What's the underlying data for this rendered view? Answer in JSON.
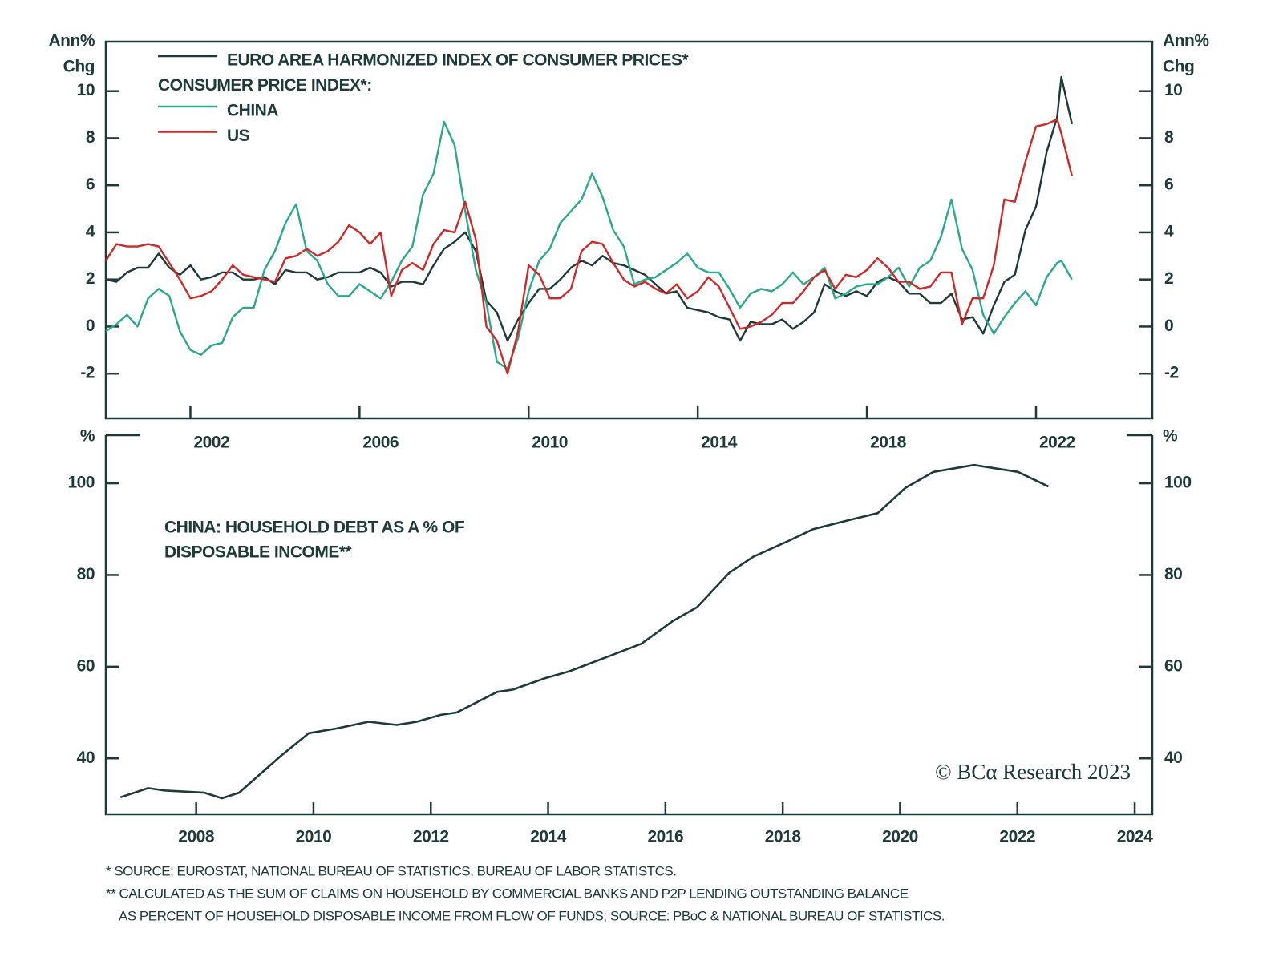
{
  "chart_data": [
    {
      "type": "line",
      "ylabel": [
        "Ann%",
        "Chg"
      ],
      "legend_subtitle": "CONSUMER PRICE INDEX*:",
      "xlim": [
        2000,
        2024.75
      ],
      "xticks": [
        2002,
        2006,
        2010,
        2014,
        2018,
        2022
      ],
      "ylim": [
        -3.9,
        12.1
      ],
      "yticks": [
        -2,
        0,
        2,
        4,
        6,
        8,
        10
      ],
      "x": [
        2000,
        2000.25,
        2000.5,
        2000.75,
        2001,
        2001.25,
        2001.5,
        2001.75,
        2002,
        2002.25,
        2002.5,
        2002.75,
        2003,
        2003.25,
        2003.5,
        2003.75,
        2004,
        2004.25,
        2004.5,
        2004.75,
        2005,
        2005.25,
        2005.5,
        2005.75,
        2006,
        2006.25,
        2006.5,
        2006.75,
        2007,
        2007.25,
        2007.5,
        2007.75,
        2008,
        2008.25,
        2008.5,
        2008.75,
        2009,
        2009.25,
        2009.5,
        2009.75,
        2010,
        2010.25,
        2010.5,
        2010.75,
        2011,
        2011.25,
        2011.5,
        2011.75,
        2012,
        2012.25,
        2012.5,
        2012.75,
        2013,
        2013.25,
        2013.5,
        2013.75,
        2014,
        2014.25,
        2014.5,
        2014.75,
        2015,
        2015.25,
        2015.5,
        2015.75,
        2016,
        2016.25,
        2016.5,
        2016.75,
        2017,
        2017.25,
        2017.5,
        2017.75,
        2018,
        2018.25,
        2018.5,
        2018.75,
        2019,
        2019.25,
        2019.5,
        2019.75,
        2020,
        2020.25,
        2020.5,
        2020.75,
        2021,
        2021.25,
        2021.5,
        2021.75,
        2022,
        2022.25,
        2022.5,
        2022.6,
        2022.85
      ],
      "series": [
        {
          "name": "EURO AREA HARMONIZED INDEX OF CONSUMER PRICES*",
          "color": "#1d3a38",
          "values": [
            2.0,
            1.9,
            2.3,
            2.5,
            2.5,
            3.1,
            2.5,
            2.2,
            2.6,
            2.0,
            2.1,
            2.3,
            2.3,
            2.0,
            2.0,
            2.1,
            1.8,
            2.4,
            2.3,
            2.3,
            2.0,
            2.1,
            2.3,
            2.3,
            2.3,
            2.5,
            2.3,
            1.7,
            1.9,
            1.9,
            1.8,
            2.6,
            3.3,
            3.6,
            4.0,
            3.2,
            1.1,
            0.6,
            -0.6,
            0.3,
            1.0,
            1.6,
            1.6,
            2.0,
            2.5,
            2.8,
            2.6,
            3.0,
            2.7,
            2.6,
            2.4,
            2.2,
            1.8,
            1.4,
            1.5,
            0.8,
            0.7,
            0.6,
            0.4,
            0.3,
            -0.6,
            0.2,
            0.1,
            0.1,
            0.3,
            -0.1,
            0.2,
            0.6,
            1.8,
            1.5,
            1.3,
            1.5,
            1.3,
            1.9,
            2.1,
            1.9,
            1.4,
            1.4,
            1.0,
            1.0,
            1.4,
            0.3,
            0.4,
            -0.3,
            0.9,
            1.9,
            2.2,
            4.1,
            5.1,
            7.4,
            8.9,
            10.6,
            8.6
          ]
        },
        {
          "name": "CHINA",
          "color": "#2aa98a",
          "values": [
            -0.2,
            0.1,
            0.5,
            0.0,
            1.2,
            1.6,
            1.3,
            -0.2,
            -1.0,
            -1.2,
            -0.8,
            -0.7,
            0.4,
            0.8,
            0.8,
            2.4,
            3.2,
            4.4,
            5.2,
            3.2,
            2.8,
            1.8,
            1.3,
            1.3,
            1.8,
            1.5,
            1.2,
            1.9,
            2.8,
            3.4,
            5.6,
            6.5,
            8.7,
            7.7,
            4.9,
            2.4,
            1.0,
            -1.5,
            -1.8,
            -0.5,
            1.5,
            2.8,
            3.3,
            4.4,
            4.9,
            5.4,
            6.5,
            5.5,
            4.1,
            3.4,
            1.8,
            2.0,
            2.1,
            2.4,
            2.7,
            3.1,
            2.5,
            2.3,
            2.3,
            1.6,
            0.8,
            1.4,
            1.6,
            1.5,
            1.8,
            2.3,
            1.8,
            2.1,
            2.5,
            1.2,
            1.4,
            1.7,
            1.8,
            1.8,
            2.1,
            2.5,
            1.7,
            2.5,
            2.8,
            3.8,
            5.4,
            3.3,
            2.4,
            0.5,
            -0.3,
            0.4,
            1.0,
            1.5,
            0.9,
            2.1,
            2.7,
            2.8,
            2.0
          ]
        },
        {
          "name": "US",
          "color": "#cc2a2a",
          "values": [
            2.8,
            3.5,
            3.4,
            3.4,
            3.5,
            3.4,
            2.7,
            2.0,
            1.2,
            1.3,
            1.5,
            2.0,
            2.6,
            2.2,
            2.1,
            2.0,
            1.9,
            2.9,
            3.0,
            3.3,
            3.0,
            3.2,
            3.6,
            4.3,
            4.0,
            3.5,
            4.0,
            1.3,
            2.4,
            2.7,
            2.4,
            3.5,
            4.1,
            4.0,
            5.3,
            3.7,
            0.0,
            -0.6,
            -2.0,
            -0.2,
            2.6,
            2.2,
            1.2,
            1.2,
            1.6,
            3.2,
            3.6,
            3.5,
            2.7,
            2.0,
            1.7,
            1.9,
            1.6,
            1.4,
            1.8,
            1.2,
            1.5,
            2.1,
            1.7,
            0.8,
            -0.1,
            0.0,
            0.2,
            0.5,
            1.0,
            1.0,
            1.5,
            2.1,
            2.4,
            1.6,
            2.2,
            2.1,
            2.4,
            2.9,
            2.5,
            1.9,
            1.9,
            1.6,
            1.7,
            2.3,
            2.3,
            0.1,
            1.2,
            1.2,
            2.6,
            5.4,
            5.3,
            7.0,
            8.5,
            8.6,
            8.8,
            8.2,
            6.4
          ]
        }
      ]
    },
    {
      "type": "line",
      "ylabel": [
        "%"
      ],
      "annotation": [
        "CHINA: HOUSEHOLD DEBT AS A % OF",
        "DISPOSABLE INCOME**"
      ],
      "xlim": [
        2006.46,
        2024.3
      ],
      "xticks": [
        2008,
        2010,
        2012,
        2014,
        2016,
        2018,
        2020,
        2022,
        2024
      ],
      "ylim": [
        27.8,
        110.5
      ],
      "yticks": [
        40,
        60,
        80,
        100
      ],
      "color": "#1d3a38",
      "x": [
        2006.71,
        2007.18,
        2007.46,
        2008.14,
        2008.44,
        2008.73,
        2009.44,
        2009.92,
        2010.39,
        2010.94,
        2011.42,
        2011.76,
        2012.17,
        2012.44,
        2013.13,
        2013.4,
        2013.95,
        2014.36,
        2015.18,
        2015.59,
        2016.13,
        2016.54,
        2017.09,
        2017.5,
        2018.11,
        2018.52,
        2019.14,
        2019.62,
        2020.09,
        2020.57,
        2021.26,
        2022.01,
        2022.53
      ],
      "values": [
        31.5,
        33.5,
        33,
        32.5,
        31.3,
        32.5,
        40.5,
        45.5,
        46.5,
        48,
        47.3,
        48,
        49.5,
        50,
        54.5,
        55,
        57.5,
        59,
        63,
        65,
        70,
        73,
        80.5,
        84,
        87.5,
        90,
        92,
        93.5,
        99,
        102.5,
        104,
        102.5,
        99.3
      ]
    }
  ],
  "credit": "© BCα Research 2023",
  "footnotes": [
    "*  SOURCE: EUROSTAT, NATIONAL BUREAU OF STATISTICS, BUREAU OF LABOR STATISTCS.",
    "** CALCULATED AS THE SUM OF CLAIMS ON HOUSEHOLD BY COMMERCIAL BANKS AND P2P LENDING OUTSTANDING BALANCE",
    "AS PERCENT OF HOUSEHOLD DISPOSABLE INCOME FROM FLOW OF FUNDS; SOURCE: PBoC & NATIONAL BUREAU OF STATISTICS."
  ]
}
